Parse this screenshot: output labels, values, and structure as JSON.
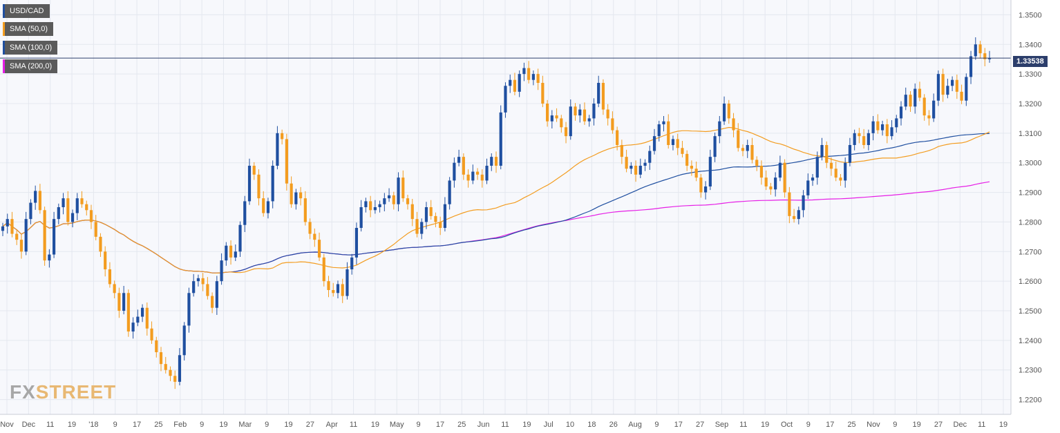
{
  "legend": [
    {
      "label": "USD/CAD",
      "color": "#1f4fa0"
    },
    {
      "label": "SMA (50,0)",
      "color": "#f39c1f"
    },
    {
      "label": "SMA (100,0)",
      "color": "#1f4fa0"
    },
    {
      "label": "SMA (200,0)",
      "color": "#e61ee6"
    }
  ],
  "current_price": "1.33538",
  "brand": {
    "fx": "FX",
    "street": "STREET"
  },
  "chart_data": {
    "type": "candlestick",
    "title": "USD/CAD",
    "ylim": [
      1.215,
      1.355
    ],
    "y_ticks": [
      "1.3500",
      "1.3400",
      "1.3300",
      "1.3200",
      "1.3100",
      "1.3000",
      "1.2900",
      "1.2800",
      "1.2700",
      "1.2600",
      "1.2500",
      "1.2400",
      "1.2300",
      "1.2200"
    ],
    "x_ticks": [
      "Nov",
      "Dec",
      "11",
      "19",
      "'18",
      "9",
      "17",
      "25",
      "Feb",
      "9",
      "19",
      "Mar",
      "9",
      "19",
      "27",
      "Apr",
      "11",
      "19",
      "May",
      "9",
      "17",
      "25",
      "Jun",
      "11",
      "19",
      "Jul",
      "10",
      "18",
      "26",
      "Aug",
      "9",
      "17",
      "27",
      "Sep",
      "11",
      "19",
      "Oct",
      "9",
      "17",
      "25",
      "Nov",
      "9",
      "19",
      "27",
      "Dec",
      "11",
      "19"
    ],
    "current_price": 1.33538,
    "grid": true,
    "colors": {
      "up": "#1f4fa0",
      "down": "#f39c1f",
      "sma50": "#f39c1f",
      "sma100": "#1f4fa0",
      "sma200": "#e61ee6"
    },
    "closes": [
      1.2785,
      1.281,
      1.276,
      1.274,
      1.27,
      1.281,
      1.2865,
      1.2905,
      1.284,
      1.267,
      1.269,
      1.281,
      1.285,
      1.288,
      1.28,
      1.283,
      1.288,
      1.286,
      1.284,
      1.28,
      1.275,
      1.27,
      1.264,
      1.259,
      1.256,
      1.25,
      1.256,
      1.243,
      1.246,
      1.248,
      1.251,
      1.244,
      1.24,
      1.236,
      1.232,
      1.23,
      1.228,
      1.226,
      1.235,
      1.245,
      1.256,
      1.26,
      1.261,
      1.259,
      1.255,
      1.251,
      1.26,
      1.267,
      1.272,
      1.268,
      1.27,
      1.279,
      1.287,
      1.299,
      1.296,
      1.288,
      1.283,
      1.287,
      1.299,
      1.31,
      1.308,
      1.293,
      1.286,
      1.29,
      1.288,
      1.28,
      1.276,
      1.274,
      1.268,
      1.26,
      1.257,
      1.256,
      1.259,
      1.255,
      1.264,
      1.268,
      1.278,
      1.285,
      1.287,
      1.284,
      1.285,
      1.286,
      1.288,
      1.289,
      1.286,
      1.295,
      1.288,
      1.286,
      1.281,
      1.276,
      1.28,
      1.285,
      1.282,
      1.28,
      1.278,
      1.286,
      1.294,
      1.3,
      1.302,
      1.296,
      1.294,
      1.297,
      1.296,
      1.294,
      1.299,
      1.302,
      1.299,
      1.317,
      1.326,
      1.328,
      1.324,
      1.33,
      1.332,
      1.328,
      1.33,
      1.327,
      1.32,
      1.314,
      1.316,
      1.315,
      1.312,
      1.309,
      1.319,
      1.316,
      1.318,
      1.314,
      1.315,
      1.32,
      1.327,
      1.318,
      1.315,
      1.311,
      1.306,
      1.302,
      1.298,
      1.299,
      1.296,
      1.299,
      1.3,
      1.304,
      1.309,
      1.313,
      1.314,
      1.306,
      1.308,
      1.305,
      1.303,
      1.299,
      1.298,
      1.295,
      1.29,
      1.292,
      1.302,
      1.309,
      1.314,
      1.32,
      1.315,
      1.311,
      1.305,
      1.304,
      1.306,
      1.301,
      1.299,
      1.295,
      1.292,
      1.291,
      1.295,
      1.3,
      1.29,
      1.282,
      1.281,
      1.284,
      1.289,
      1.294,
      1.295,
      1.302,
      1.306,
      1.3,
      1.298,
      1.295,
      1.294,
      1.3,
      1.306,
      1.31,
      1.309,
      1.306,
      1.31,
      1.314,
      1.311,
      1.313,
      1.309,
      1.312,
      1.315,
      1.319,
      1.323,
      1.319,
      1.325,
      1.322,
      1.316,
      1.315,
      1.321,
      1.33,
      1.323,
      1.326,
      1.328,
      1.324,
      1.321,
      1.329,
      1.336,
      1.34,
      1.337,
      1.335,
      1.33538
    ]
  }
}
